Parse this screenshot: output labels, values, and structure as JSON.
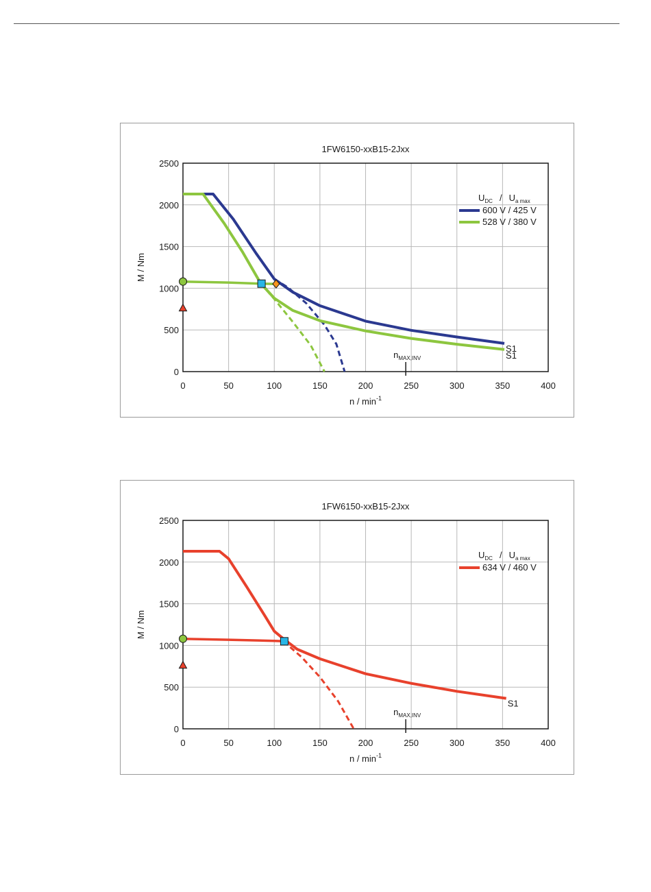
{
  "chart_data": [
    {
      "type": "line",
      "title": "1FW6150-xxB15-2Jxx",
      "xlabel": "n / min",
      "xlabel_sup": "-1",
      "ylabel": "M / Nm",
      "xlim": [
        0,
        400
      ],
      "ylim": [
        0,
        2500
      ],
      "xticks": [
        "0",
        "50",
        "100",
        "150",
        "200",
        "250",
        "300",
        "350",
        "400"
      ],
      "yticks": [
        "0",
        "500",
        "1000",
        "1500",
        "2000",
        "2500"
      ],
      "grid": true,
      "legend_title": {
        "u": "U",
        "dc": "DC",
        "sep": "/",
        "ua": "U",
        "amax": "a max"
      },
      "legend_position": "top-right",
      "annotation": {
        "n": "n",
        "sub": "MAX,INV",
        "x": 244
      },
      "series": [
        {
          "name": "600 V / 425 V",
          "color": "#2b3990",
          "solid": [
            [
              0,
              2130
            ],
            [
              33,
              2130
            ],
            [
              55,
              1830
            ],
            [
              80,
              1420
            ],
            [
              100,
              1110
            ],
            [
              120,
              955
            ],
            [
              150,
              790
            ],
            [
              200,
              605
            ],
            [
              250,
              495
            ],
            [
              300,
              415
            ],
            [
              352,
              338
            ]
          ],
          "dashed": [
            [
              100,
              1110
            ],
            [
              115,
              1010
            ],
            [
              135,
              820
            ],
            [
              155,
              560
            ],
            [
              168,
              330
            ],
            [
              177,
              0
            ]
          ],
          "end_label": "S1"
        },
        {
          "name": "528 V / 380 V",
          "color": "#8dc63f",
          "solid": [
            [
              0,
              2130
            ],
            [
              22,
              2130
            ],
            [
              45,
              1780
            ],
            [
              65,
              1440
            ],
            [
              85,
              1060
            ],
            [
              100,
              880
            ],
            [
              120,
              735
            ],
            [
              150,
              610
            ],
            [
              200,
              488
            ],
            [
              250,
              398
            ],
            [
              300,
              328
            ],
            [
              352,
              265
            ]
          ],
          "dashed": [
            [
              85,
              1060
            ],
            [
              100,
              870
            ],
            [
              120,
              600
            ],
            [
              140,
              315
            ],
            [
              155,
              0
            ]
          ],
          "end_label": "S1"
        }
      ],
      "s1_line": [
        [
          0,
          1080
        ],
        [
          50,
          1068
        ],
        [
          85,
          1055
        ],
        [
          100,
          1052
        ]
      ],
      "s1_color": "#8dc63f",
      "markers": [
        {
          "shape": "circle",
          "x": 0,
          "y": 1080,
          "color": "#8dc63f"
        },
        {
          "shape": "triangle",
          "x": 0,
          "y": 760,
          "color": "#e8412c"
        },
        {
          "shape": "square",
          "x": 86,
          "y": 1055,
          "color": "#29b6e6"
        },
        {
          "shape": "diamond",
          "x": 102,
          "y": 1052,
          "color": "#f7941d"
        }
      ]
    },
    {
      "type": "line",
      "title": "1FW6150-xxB15-2Jxx",
      "xlabel": "n / min",
      "xlabel_sup": "-1",
      "ylabel": "M / Nm",
      "xlim": [
        0,
        400
      ],
      "ylim": [
        0,
        2500
      ],
      "xticks": [
        "0",
        "50",
        "100",
        "150",
        "200",
        "250",
        "300",
        "350",
        "400"
      ],
      "yticks": [
        "0",
        "500",
        "1000",
        "1500",
        "2000",
        "2500"
      ],
      "grid": true,
      "legend_title": {
        "u": "U",
        "dc": "DC",
        "sep": "/",
        "ua": "U",
        "amax": "a max"
      },
      "legend_position": "top-right",
      "annotation": {
        "n": "n",
        "sub": "MAX,INV",
        "x": 244
      },
      "series": [
        {
          "name": "634 V / 460 V",
          "color": "#e8412c",
          "solid": [
            [
              0,
              2130
            ],
            [
              40,
              2130
            ],
            [
              50,
              2040
            ],
            [
              70,
              1700
            ],
            [
              90,
              1350
            ],
            [
              100,
              1170
            ],
            [
              110,
              1080
            ],
            [
              125,
              955
            ],
            [
              150,
              840
            ],
            [
              200,
              660
            ],
            [
              250,
              545
            ],
            [
              300,
              450
            ],
            [
              354,
              365
            ]
          ],
          "dashed": [
            [
              110,
              1050
            ],
            [
              130,
              860
            ],
            [
              150,
              620
            ],
            [
              170,
              330
            ],
            [
              187,
              0
            ]
          ],
          "end_label": "S1"
        }
      ],
      "s1_line": [
        [
          0,
          1080
        ],
        [
          50,
          1068
        ],
        [
          100,
          1055
        ],
        [
          111,
          1050
        ]
      ],
      "s1_color": "#e8412c",
      "markers": [
        {
          "shape": "circle",
          "x": 0,
          "y": 1080,
          "color": "#8dc63f"
        },
        {
          "shape": "triangle",
          "x": 0,
          "y": 760,
          "color": "#e8412c"
        },
        {
          "shape": "square",
          "x": 111,
          "y": 1050,
          "color": "#29b6e6"
        }
      ]
    }
  ]
}
